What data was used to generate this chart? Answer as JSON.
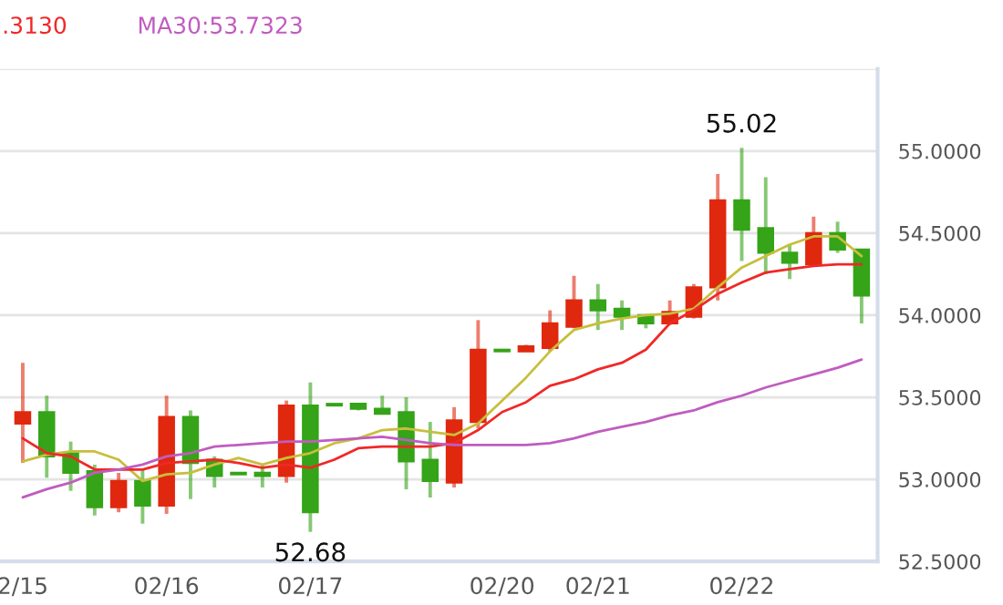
{
  "chart_data": {
    "type": "candlestick",
    "categories": [
      "2/15",
      null,
      null,
      null,
      null,
      null,
      "02/16",
      null,
      null,
      null,
      null,
      null,
      "02/17",
      null,
      null,
      null,
      null,
      null,
      null,
      null,
      "02/20",
      null,
      null,
      null,
      "02/21",
      null,
      null,
      null,
      null,
      null,
      "02/22",
      null,
      null,
      null,
      null,
      null
    ],
    "ohlc": [
      [
        53.34,
        53.71,
        53.1,
        53.41
      ],
      [
        53.41,
        53.51,
        53.01,
        53.14
      ],
      [
        53.16,
        53.23,
        52.93,
        53.04
      ],
      [
        53.05,
        53.09,
        52.78,
        52.83
      ],
      [
        52.83,
        53.04,
        52.8,
        52.99
      ],
      [
        52.99,
        53.06,
        52.73,
        52.84
      ],
      [
        52.84,
        53.51,
        52.79,
        53.38
      ],
      [
        53.38,
        53.42,
        52.88,
        53.1
      ],
      [
        53.12,
        53.14,
        52.95,
        53.02
      ],
      [
        53.04,
        53.04,
        53.03,
        53.03
      ],
      [
        53.04,
        53.09,
        52.95,
        53.02
      ],
      [
        53.02,
        53.48,
        52.98,
        53.45
      ],
      [
        53.45,
        53.59,
        52.68,
        52.8
      ],
      [
        53.46,
        53.46,
        53.45,
        53.45
      ],
      [
        53.46,
        53.46,
        53.42,
        53.43
      ],
      [
        53.43,
        53.51,
        53.4,
        53.4
      ],
      [
        53.41,
        53.5,
        52.94,
        53.11
      ],
      [
        53.12,
        53.35,
        52.89,
        52.99
      ],
      [
        52.98,
        53.44,
        52.95,
        53.36
      ],
      [
        53.35,
        53.97,
        53.31,
        53.79
      ],
      [
        53.79,
        53.79,
        53.78,
        53.78
      ],
      [
        53.78,
        53.82,
        53.78,
        53.81
      ],
      [
        53.8,
        54.03,
        53.78,
        53.95
      ],
      [
        53.93,
        54.24,
        53.92,
        54.09
      ],
      [
        54.09,
        54.19,
        53.91,
        54.03
      ],
      [
        54.04,
        54.09,
        53.91,
        53.99
      ],
      [
        54.0,
        54.0,
        53.92,
        53.95
      ],
      [
        53.95,
        54.09,
        53.94,
        54.02
      ],
      [
        53.99,
        54.19,
        53.98,
        54.17
      ],
      [
        54.17,
        54.86,
        54.09,
        54.7
      ],
      [
        54.7,
        55.02,
        54.33,
        54.52
      ],
      [
        54.53,
        54.84,
        54.25,
        54.38
      ],
      [
        54.38,
        54.43,
        54.22,
        54.32
      ],
      [
        54.31,
        54.6,
        54.3,
        54.5
      ],
      [
        54.5,
        54.57,
        54.38,
        54.4
      ],
      [
        54.4,
        54.4,
        53.95,
        54.12
      ]
    ],
    "colors": [
      "#e0280e",
      "#35a418",
      "#35a418",
      "#35a418",
      "#e0280e",
      "#35a418",
      "#e0280e",
      "#35a418",
      "#35a418",
      "#35a418",
      "#35a418",
      "#e0280e",
      "#35a418",
      "#35a418",
      "#35a418",
      "#35a418",
      "#35a418",
      "#35a418",
      "#e0280e",
      "#e0280e",
      "#35a418",
      "#e0280e",
      "#e0280e",
      "#e0280e",
      "#35a418",
      "#35a418",
      "#35a418",
      "#e0280e",
      "#e0280e",
      "#e0280e",
      "#35a418",
      "#35a418",
      "#35a418",
      "#e0280e",
      "#35a418",
      "#35a418"
    ],
    "series": [
      {
        "type": "line",
        "color": "#c8be3c",
        "values": [
          53.11,
          53.15,
          53.17,
          53.17,
          53.12,
          52.99,
          53.03,
          53.04,
          53.09,
          53.13,
          53.09,
          53.13,
          53.16,
          53.22,
          53.25,
          53.3,
          53.31,
          53.29,
          53.27,
          53.34,
          53.48,
          53.62,
          53.78,
          53.91,
          53.95,
          53.98,
          54.0,
          54.01,
          54.04,
          54.17,
          54.29,
          54.36,
          54.43,
          54.48,
          54.48,
          54.36
        ]
      },
      {
        "type": "line",
        "name": ".3130",
        "color": "#f02828",
        "values": [
          53.25,
          53.16,
          53.14,
          53.06,
          53.06,
          53.06,
          53.1,
          53.11,
          53.12,
          53.1,
          53.07,
          53.09,
          53.07,
          53.12,
          53.19,
          53.2,
          53.2,
          53.2,
          53.22,
          53.3,
          53.41,
          53.47,
          53.57,
          53.61,
          53.67,
          53.71,
          53.79,
          53.95,
          54.03,
          54.13,
          54.2,
          54.26,
          54.28,
          54.3,
          54.31,
          54.31
        ]
      },
      {
        "type": "line",
        "name": "MA30:53.7323",
        "color": "#c05cc0",
        "values": [
          52.89,
          52.94,
          52.98,
          53.04,
          53.06,
          53.09,
          53.14,
          53.16,
          53.2,
          53.21,
          53.22,
          53.23,
          53.23,
          53.24,
          53.25,
          53.26,
          53.24,
          53.22,
          53.21,
          53.21,
          53.21,
          53.21,
          53.22,
          53.25,
          53.29,
          53.32,
          53.35,
          53.39,
          53.42,
          53.47,
          53.51,
          53.56,
          53.6,
          53.64,
          53.68,
          53.73
        ]
      }
    ],
    "annotations": [
      {
        "text": "55.02",
        "x": "02/22",
        "y": 55.02
      },
      {
        "text": "52.68",
        "x": "02/17",
        "y": 52.68
      }
    ],
    "ylim": [
      52.5,
      55.5
    ],
    "yticks": [
      {
        "value": 52.5,
        "label": "52.5000"
      },
      {
        "value": 53.0,
        "label": "53.0000"
      },
      {
        "value": 53.5,
        "label": "53.5000"
      },
      {
        "value": 54.0,
        "label": "54.0000"
      },
      {
        "value": 54.5,
        "label": "54.5000"
      },
      {
        "value": 55.0,
        "label": "55.0000"
      },
      {
        "value": 55.5,
        "label": null
      }
    ],
    "grid": "y",
    "legend": "top left"
  }
}
